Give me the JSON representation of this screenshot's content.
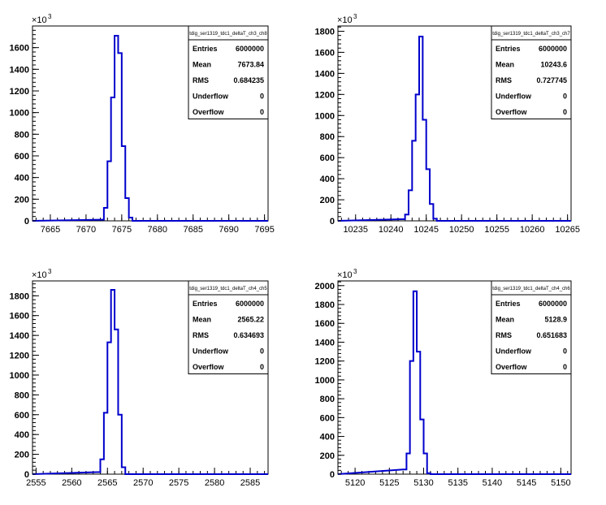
{
  "chart_data": [
    {
      "type": "bar",
      "histogram_name": "tdig_ser1319_tdc1_deltaT_ch3_ch8",
      "stats": [
        [
          "Entries",
          "6000000"
        ],
        [
          "Mean",
          "7673.84"
        ],
        [
          "RMS",
          "0.684235"
        ],
        [
          "Underflow",
          "0"
        ],
        [
          "Overflow",
          "0"
        ]
      ],
      "y_multiplier": "×10",
      "y_multiplier_exp": "3",
      "x_ticks": [
        "7665",
        "7670",
        "7675",
        "7680",
        "7685",
        "7690",
        "7695"
      ],
      "y_ticks": [
        "0",
        "200",
        "400",
        "600",
        "800",
        "1000",
        "1200",
        "1400",
        "1600"
      ],
      "xlim": [
        7662.5,
        7695.5
      ],
      "ylim": [
        0,
        1800
      ],
      "bin_width": 0.5,
      "bins": [
        [
          7672,
          10
        ],
        [
          7672.5,
          120
        ],
        [
          7673,
          550
        ],
        [
          7673.5,
          1140
        ],
        [
          7674,
          1710
        ],
        [
          7674.5,
          1550
        ],
        [
          7675,
          690
        ],
        [
          7675.5,
          210
        ],
        [
          7676,
          30
        ]
      ]
    },
    {
      "type": "bar",
      "histogram_name": "tdig_ser1319_tdc1_deltaT_ch3_ch7",
      "stats": [
        [
          "Entries",
          "6000000"
        ],
        [
          "Mean",
          "10243.6"
        ],
        [
          "RMS",
          "0.727745"
        ],
        [
          "Underflow",
          "0"
        ],
        [
          "Overflow",
          "0"
        ]
      ],
      "y_multiplier": "×10",
      "y_multiplier_exp": "3",
      "x_ticks": [
        "10235",
        "10240",
        "10245",
        "10250",
        "10255",
        "10260",
        "10265"
      ],
      "y_ticks": [
        "0",
        "200",
        "400",
        "600",
        "800",
        "1000",
        "1200",
        "1400",
        "1600",
        "1800"
      ],
      "xlim": [
        10232.5,
        10265.5
      ],
      "ylim": [
        0,
        1850
      ],
      "bin_width": 0.5,
      "bins": [
        [
          10241.5,
          15
        ],
        [
          10242,
          60
        ],
        [
          10242.5,
          290
        ],
        [
          10243,
          760
        ],
        [
          10243.5,
          1200
        ],
        [
          10244,
          1750
        ],
        [
          10244.5,
          960
        ],
        [
          10245,
          490
        ],
        [
          10245.5,
          160
        ],
        [
          10246,
          20
        ]
      ]
    },
    {
      "type": "bar",
      "histogram_name": "tdig_ser1319_tdc1_deltaT_ch4_ch5",
      "stats": [
        [
          "Entries",
          "6000000"
        ],
        [
          "Mean",
          "2565.22"
        ],
        [
          "RMS",
          "0.634693"
        ],
        [
          "Underflow",
          "0"
        ],
        [
          "Overflow",
          "0"
        ]
      ],
      "y_multiplier": "×10",
      "y_multiplier_exp": "3",
      "x_ticks": [
        "2555",
        "2560",
        "2565",
        "2570",
        "2575",
        "2580",
        "2585"
      ],
      "y_ticks": [
        "0",
        "200",
        "400",
        "600",
        "800",
        "1000",
        "1200",
        "1400",
        "1600",
        "1800"
      ],
      "xlim": [
        2554.5,
        2587.5
      ],
      "ylim": [
        0,
        1950
      ],
      "bin_width": 0.5,
      "bins": [
        [
          2563.5,
          20
        ],
        [
          2564,
          150
        ],
        [
          2564.5,
          620
        ],
        [
          2565,
          1330
        ],
        [
          2565.5,
          1860
        ],
        [
          2566,
          1460
        ],
        [
          2566.5,
          600
        ],
        [
          2567,
          70
        ]
      ]
    },
    {
      "type": "bar",
      "histogram_name": "tdig_ser1319_tdc1_deltaT_ch4_ch6",
      "stats": [
        [
          "Entries",
          "6000000"
        ],
        [
          "Mean",
          "5128.9"
        ],
        [
          "RMS",
          "0.651683"
        ],
        [
          "Underflow",
          "0"
        ],
        [
          "Overflow",
          "0"
        ]
      ],
      "y_multiplier": "×10",
      "y_multiplier_exp": "3",
      "x_ticks": [
        "5120",
        "5125",
        "5130",
        "5135",
        "5140",
        "5145",
        "5150"
      ],
      "y_ticks": [
        "0",
        "200",
        "400",
        "600",
        "800",
        "1000",
        "1200",
        "1400",
        "1600",
        "1800",
        "2000"
      ],
      "xlim": [
        5117.5,
        5151.5
      ],
      "ylim": [
        0,
        2050
      ],
      "bin_width": 0.5,
      "bins": [
        [
          5127,
          50
        ],
        [
          5127.5,
          220
        ],
        [
          5128,
          1200
        ],
        [
          5128.5,
          1940
        ],
        [
          5129,
          1300
        ],
        [
          5129.5,
          580
        ],
        [
          5130,
          220
        ],
        [
          5130.5,
          10
        ]
      ]
    }
  ]
}
